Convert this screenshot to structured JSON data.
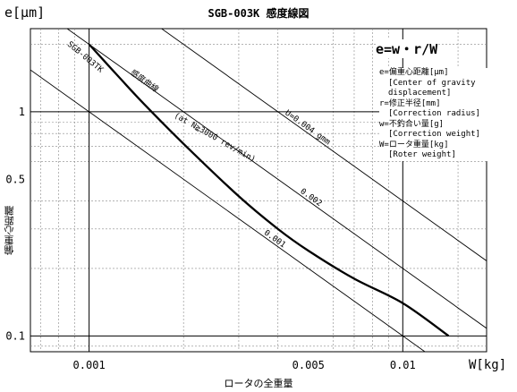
{
  "chart_data": {
    "type": "line",
    "title": "SGB-003K 感度線図",
    "ylabel_top": "e[μm]",
    "ylabel_side": "偏重心距離",
    "xlabel_unit": "W[kg]",
    "xlabel_bottom": "ロータの全重量",
    "xscale": "log",
    "yscale": "log",
    "xlim": [
      0.00065,
      0.0185
    ],
    "ylim": [
      0.085,
      2.35
    ],
    "x_tick_labels": [
      {
        "value": 0.001,
        "label": "0.001"
      },
      {
        "value": 0.005,
        "label": "0.005"
      },
      {
        "value": 0.01,
        "label": "0.01"
      }
    ],
    "y_tick_labels": [
      {
        "value": 0.1,
        "label": "0.1"
      },
      {
        "value": 0.5,
        "label": "0.5"
      },
      {
        "value": 1,
        "label": "1"
      }
    ],
    "grid": true,
    "formula": "e=w・r/W",
    "legend_entries": [
      {
        "term": "e=偏重心距離[μm]",
        "desc": [
          "[Center of gravity",
          "displacement]"
        ]
      },
      {
        "term": "r=修正半径[mm]",
        "desc": [
          "[Correction radius]"
        ]
      },
      {
        "term": "w=不釣合い量[g]",
        "desc": [
          "[Correction weight]"
        ]
      },
      {
        "term": "W=ロータ重量[kg]",
        "desc": [
          "[Roter weight]"
        ]
      }
    ],
    "reference_lines": [
      {
        "uw": 0.004,
        "label": "U=0.004 gmm"
      },
      {
        "uw": 0.002,
        "label": "0.002"
      },
      {
        "uw": 0.001,
        "label": "0.001"
      }
    ],
    "sensitivity_curve": {
      "label_model": "SGB-003TK",
      "label_curve": "感度曲線",
      "label_condition": "(at N≧3000 rev/min)",
      "points": [
        [
          0.001,
          2.0
        ],
        [
          0.00125,
          1.42
        ],
        [
          0.0015,
          1.08
        ],
        [
          0.002,
          0.72
        ],
        [
          0.003,
          0.42
        ],
        [
          0.004,
          0.3
        ],
        [
          0.005,
          0.24
        ],
        [
          0.007,
          0.18
        ],
        [
          0.01,
          0.14
        ],
        [
          0.014,
          0.1
        ]
      ]
    }
  }
}
